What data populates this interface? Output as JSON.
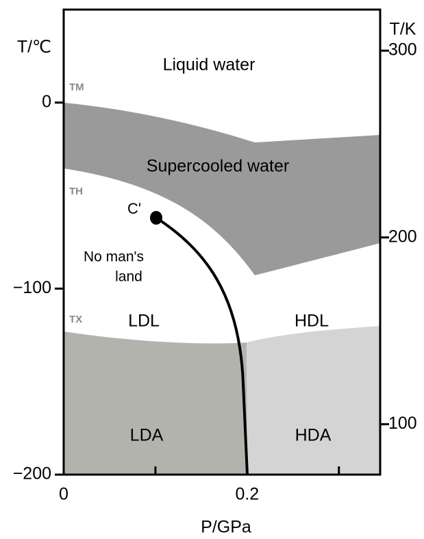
{
  "chart_data": {
    "type": "phase-diagram",
    "xlabel": "P/GPa",
    "ylabel": "T/℃",
    "y2label": "T/K",
    "xlim": [
      0,
      0.345
    ],
    "xticks": [
      0,
      0.2
    ],
    "xminor_ticks": [
      0.1,
      0.3
    ],
    "ylim": [
      -200,
      50
    ],
    "yticks": [
      0,
      {
        "value": -100,
        "label": "−100"
      },
      {
        "value": -200,
        "label": "−200"
      }
    ],
    "y2lim": [
      73,
      322
    ],
    "y2ticks": [
      300,
      200,
      100
    ],
    "regions": [
      "Liquid water",
      "Supercooled water",
      "No man's",
      "land",
      "LDL",
      "HDL",
      "LDA",
      "HDA"
    ],
    "point_label": "C'",
    "temperature_marks": [
      "TM",
      "TH",
      "TX"
    ]
  }
}
